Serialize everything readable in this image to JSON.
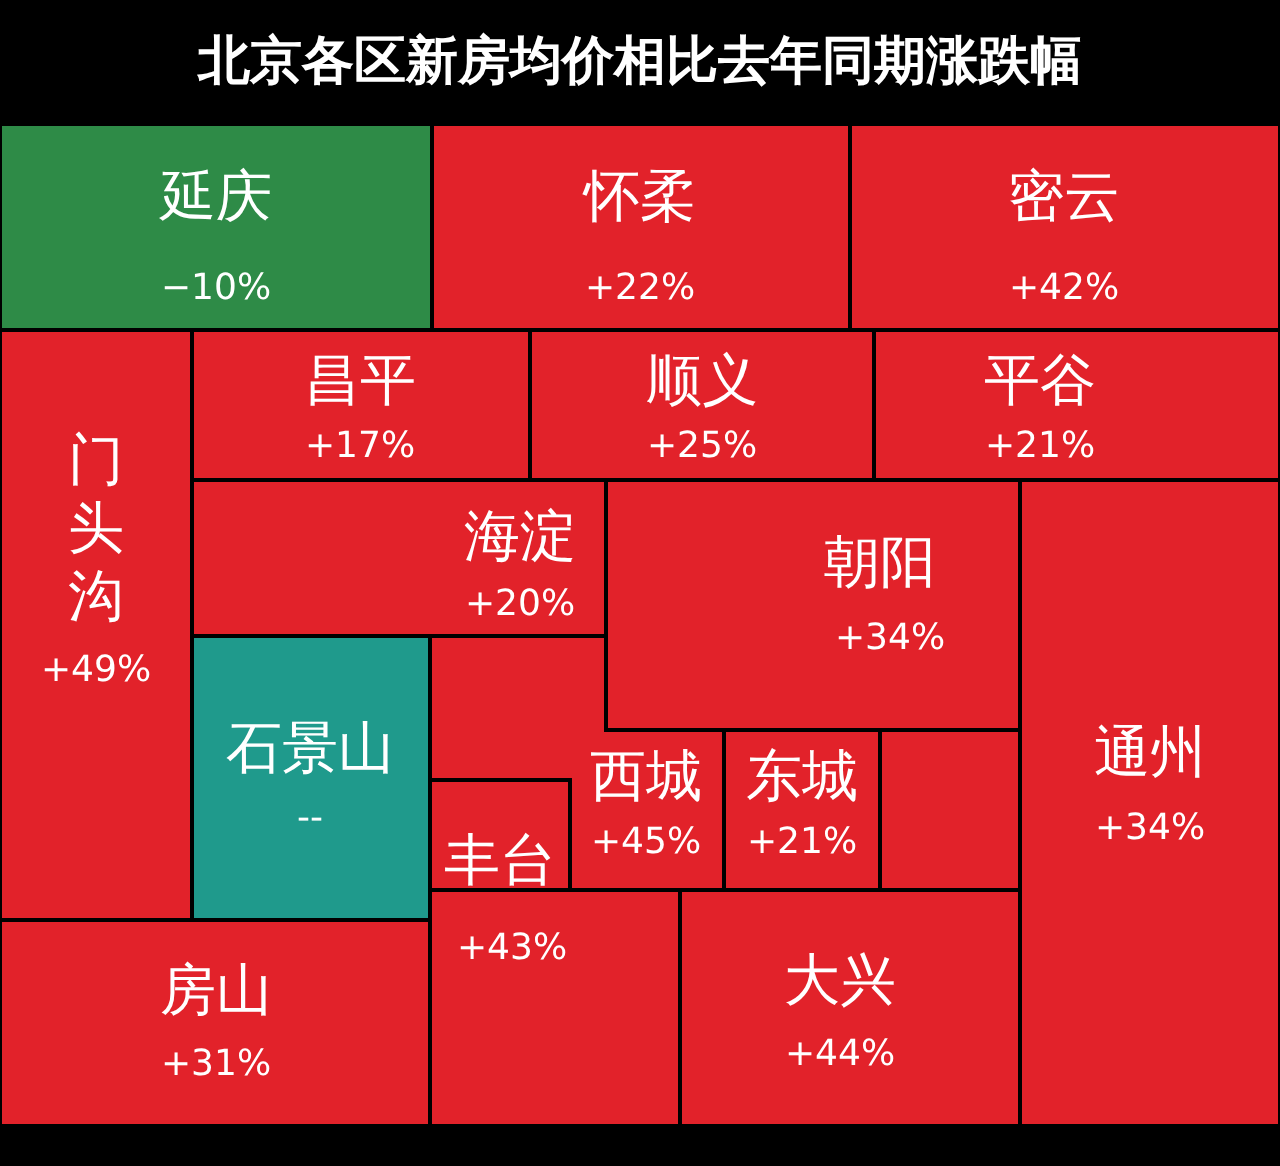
{
  "chart_data": {
    "type": "other",
    "title": "北京各区新房均价相比去年同期涨跌幅",
    "categories": [
      "延庆",
      "怀柔",
      "密云",
      "门头沟",
      "昌平",
      "顺义",
      "平谷",
      "海淀",
      "朝阳",
      "石景山",
      "西城",
      "东城",
      "丰台",
      "通州",
      "房山",
      "大兴"
    ],
    "values": [
      -10,
      22,
      42,
      49,
      17,
      25,
      21,
      20,
      34,
      null,
      45,
      21,
      43,
      34,
      31,
      44
    ],
    "value_labels": [
      "−10%",
      "+22%",
      "+42%",
      "+49%",
      "+17%",
      "+25%",
      "+21%",
      "+20%",
      "+34%",
      "--",
      "+45%",
      "+21%",
      "+43%",
      "+34%",
      "+31%",
      "+44%"
    ],
    "colors": [
      "#2e8b47",
      "#e2222a",
      "#e2222a",
      "#e2222a",
      "#e2222a",
      "#e2222a",
      "#e2222a",
      "#e2222a",
      "#e2222a",
      "#1f9a8c",
      "#e2222a",
      "#e2222a",
      "#e2222a",
      "#e2222a",
      "#e2222a",
      "#e2222a"
    ]
  }
}
